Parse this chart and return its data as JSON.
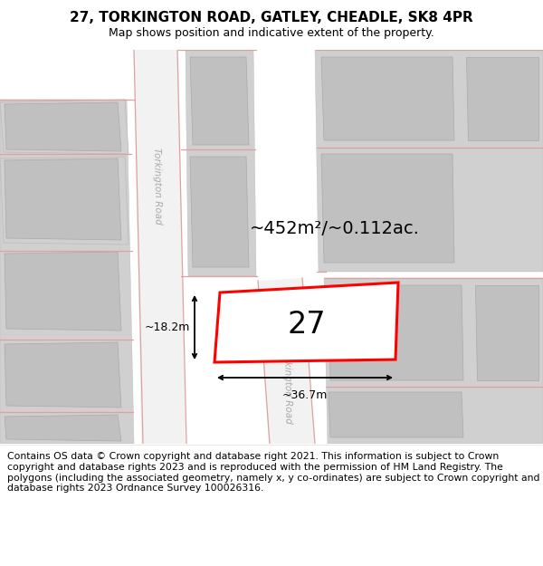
{
  "title": "27, TORKINGTON ROAD, GATLEY, CHEADLE, SK8 4PR",
  "subtitle": "Map shows position and indicative extent of the property.",
  "footer": "Contains OS data © Crown copyright and database right 2021. This information is subject to Crown copyright and database rights 2023 and is reproduced with the permission of HM Land Registry. The polygons (including the associated geometry, namely x, y co-ordinates) are subject to Crown copyright and database rights 2023 Ordnance Survey 100026316.",
  "area_text": "~452m²/~0.112ac.",
  "width_text": "~36.7m",
  "height_text": "~18.2m",
  "house_number": "27",
  "red_color": "#ff0000",
  "block_color": "#d0d0d0",
  "block_inner": "#c0c0c0",
  "road_strip": "#f2f2f2",
  "map_bg": "#e8e8e8",
  "pink_line": "#e0a0a0",
  "title_fontsize": 11,
  "subtitle_fontsize": 9,
  "footer_fontsize": 7.8,
  "road_label_color": "#aaaaaa",
  "title_bold": true
}
